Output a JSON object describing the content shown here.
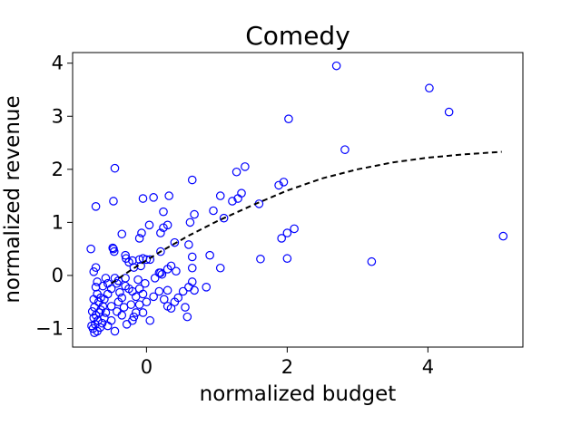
{
  "chart_data": {
    "type": "scatter",
    "title": "Comedy",
    "xlabel": "normalized budget",
    "ylabel": "normalized revenue",
    "xlim": [
      -1.05,
      5.35
    ],
    "ylim": [
      -1.35,
      4.2
    ],
    "xticks": [
      0,
      2,
      4
    ],
    "yticks": [
      -1,
      0,
      1,
      2,
      3,
      4
    ],
    "xtick_labels": [
      "0",
      "2",
      "4"
    ],
    "ytick_labels": [
      "−1",
      "0",
      "1",
      "2",
      "3",
      "4"
    ],
    "grid": false,
    "legend": "none",
    "colors": {
      "points": "#0000ff",
      "fit": "#000000"
    },
    "series": [
      {
        "marker": "open-circle",
        "points": [
          [
            2.7,
            3.95
          ],
          [
            4.02,
            3.53
          ],
          [
            4.3,
            3.08
          ],
          [
            2.02,
            2.95
          ],
          [
            2.82,
            2.37
          ],
          [
            1.4,
            2.05
          ],
          [
            1.28,
            1.95
          ],
          [
            -0.45,
            2.02
          ],
          [
            -0.72,
            1.3
          ],
          [
            -0.47,
            1.4
          ],
          [
            0.65,
            1.8
          ],
          [
            1.95,
            1.76
          ],
          [
            1.88,
            1.7
          ],
          [
            1.35,
            1.55
          ],
          [
            1.3,
            1.45
          ],
          [
            1.22,
            1.4
          ],
          [
            1.05,
            1.5
          ],
          [
            0.95,
            1.22
          ],
          [
            0.68,
            1.15
          ],
          [
            0.62,
            1.0
          ],
          [
            1.1,
            1.08
          ],
          [
            0.32,
            1.5
          ],
          [
            0.1,
            1.47
          ],
          [
            -0.05,
            1.45
          ],
          [
            0.24,
            1.2
          ],
          [
            0.3,
            0.95
          ],
          [
            0.24,
            0.9
          ],
          [
            0.2,
            0.8
          ],
          [
            0.04,
            0.95
          ],
          [
            -0.07,
            0.8
          ],
          [
            -0.1,
            0.7
          ],
          [
            -0.35,
            0.78
          ],
          [
            -0.48,
            0.52
          ],
          [
            -0.46,
            0.45
          ],
          [
            -0.47,
            0.5
          ],
          [
            -0.79,
            0.5
          ],
          [
            -0.3,
            0.38
          ],
          [
            -0.29,
            0.32
          ],
          [
            -0.2,
            0.28
          ],
          [
            -0.1,
            0.3
          ],
          [
            -0.05,
            0.32
          ],
          [
            0.0,
            0.3
          ],
          [
            0.05,
            0.3
          ],
          [
            0.2,
            0.45
          ],
          [
            0.4,
            0.62
          ],
          [
            0.6,
            0.58
          ],
          [
            0.65,
            0.35
          ],
          [
            0.9,
            0.38
          ],
          [
            1.05,
            0.14
          ],
          [
            0.65,
            0.14
          ],
          [
            0.42,
            0.08
          ],
          [
            0.35,
            0.18
          ],
          [
            0.3,
            0.12
          ],
          [
            0.22,
            0.02
          ],
          [
            0.2,
            0.05
          ],
          [
            0.18,
            0.05
          ],
          [
            -0.75,
            0.07
          ],
          [
            -0.72,
            0.15
          ],
          [
            -0.25,
            0.25
          ],
          [
            -0.18,
            0.15
          ],
          [
            2.1,
            0.88
          ],
          [
            2.0,
            0.8
          ],
          [
            1.92,
            0.7
          ],
          [
            1.6,
            1.35
          ],
          [
            1.62,
            0.31
          ],
          [
            2.0,
            0.32
          ],
          [
            3.2,
            0.26
          ],
          [
            5.07,
            0.74
          ],
          [
            0.65,
            -0.12
          ],
          [
            0.68,
            -0.28
          ],
          [
            0.6,
            -0.22
          ],
          [
            0.52,
            -0.3
          ],
          [
            0.85,
            -0.22
          ],
          [
            0.45,
            -0.42
          ],
          [
            0.4,
            -0.5
          ],
          [
            0.3,
            -0.58
          ],
          [
            0.25,
            -0.45
          ],
          [
            0.18,
            -0.3
          ],
          [
            0.1,
            -0.4
          ],
          [
            0.05,
            -0.85
          ],
          [
            -0.05,
            -0.7
          ],
          [
            -0.1,
            -0.55
          ],
          [
            -0.15,
            -0.7
          ],
          [
            -0.2,
            -0.85
          ],
          [
            -0.28,
            -0.92
          ],
          [
            -0.35,
            -0.75
          ],
          [
            -0.32,
            -0.6
          ],
          [
            -0.4,
            -0.5
          ],
          [
            -0.38,
            -0.32
          ],
          [
            -0.42,
            -0.15
          ],
          [
            -0.45,
            -0.05
          ],
          [
            -0.4,
            -0.1
          ],
          [
            -0.3,
            -0.05
          ],
          [
            -0.25,
            -0.25
          ],
          [
            -0.2,
            -0.3
          ],
          [
            -0.15,
            -0.4
          ],
          [
            -0.1,
            -0.25
          ],
          [
            -0.05,
            -0.35
          ],
          [
            0.0,
            -0.5
          ],
          [
            -0.5,
            -0.25
          ],
          [
            -0.55,
            -0.35
          ],
          [
            -0.6,
            -0.45
          ],
          [
            -0.62,
            -0.58
          ],
          [
            -0.58,
            -0.7
          ],
          [
            -0.5,
            -0.85
          ],
          [
            -0.45,
            -1.05
          ],
          [
            -0.55,
            -0.95
          ],
          [
            -0.6,
            -0.8
          ],
          [
            -0.65,
            -0.65
          ],
          [
            -0.68,
            -0.5
          ],
          [
            -0.7,
            -0.35
          ],
          [
            -0.72,
            -0.22
          ],
          [
            -0.7,
            -0.12
          ],
          [
            -0.62,
            -0.2
          ],
          [
            -0.75,
            -0.45
          ],
          [
            -0.77,
            -0.68
          ],
          [
            -0.75,
            -0.8
          ],
          [
            -0.73,
            -0.92
          ],
          [
            -0.76,
            -1.0
          ],
          [
            -0.74,
            -1.08
          ],
          [
            -0.7,
            -1.05
          ],
          [
            -0.66,
            -0.98
          ],
          [
            -0.63,
            -0.9
          ],
          [
            -0.69,
            -0.85
          ],
          [
            -0.72,
            -0.75
          ],
          [
            -0.67,
            -0.7
          ],
          [
            -0.78,
            -0.95
          ],
          [
            -0.74,
            -0.6
          ],
          [
            -0.65,
            -0.42
          ],
          [
            -0.55,
            -0.15
          ],
          [
            -0.58,
            -0.05
          ],
          [
            -0.5,
            -0.58
          ],
          [
            -0.42,
            -0.68
          ],
          [
            -0.35,
            -0.42
          ],
          [
            -0.3,
            -0.2
          ],
          [
            -0.22,
            -0.55
          ],
          [
            -0.18,
            -0.78
          ],
          [
            0.35,
            -0.62
          ],
          [
            0.55,
            -0.6
          ],
          [
            0.58,
            -0.78
          ],
          [
            0.3,
            -0.28
          ],
          [
            -0.02,
            -0.15
          ],
          [
            -0.12,
            -0.08
          ],
          [
            -0.08,
            0.18
          ],
          [
            0.12,
            -0.05
          ]
        ]
      },
      {
        "style": "dashed-line",
        "x": [
          -0.5,
          -0.2,
          0.2,
          0.6,
          1.0,
          1.5,
          2.0,
          2.5,
          3.0,
          3.5,
          4.0,
          4.5,
          5.05
        ],
        "y": [
          -0.15,
          0.12,
          0.45,
          0.75,
          1.02,
          1.32,
          1.6,
          1.83,
          2.0,
          2.13,
          2.22,
          2.28,
          2.33
        ]
      }
    ]
  }
}
